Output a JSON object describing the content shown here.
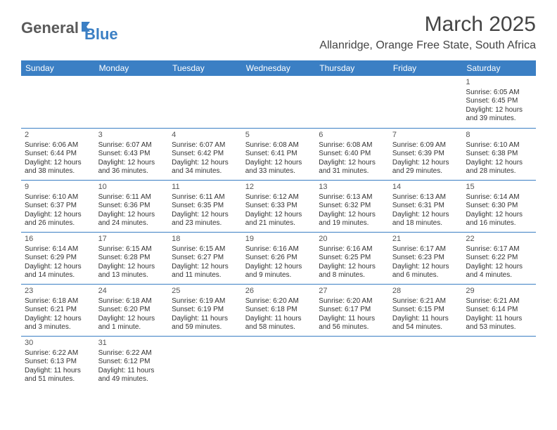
{
  "logo": {
    "text_general": "General",
    "text_blue": "Blue"
  },
  "title": "March 2025",
  "location": "Allanridge, Orange Free State, South Africa",
  "colors": {
    "header_bg": "#3b7fc4",
    "header_text": "#ffffff",
    "body_text": "#333333",
    "title_text": "#444444",
    "border": "#3b7fc4",
    "logo_gray": "#5a5a5a",
    "logo_blue": "#3b7fc4",
    "background": "#ffffff"
  },
  "typography": {
    "title_fontsize": 30,
    "location_fontsize": 16,
    "weekday_fontsize": 12,
    "day_number_fontsize": 11,
    "body_fontsize": 10,
    "logo_fontsize": 22
  },
  "weekdays": [
    "Sunday",
    "Monday",
    "Tuesday",
    "Wednesday",
    "Thursday",
    "Friday",
    "Saturday"
  ],
  "layout": {
    "columns": 7,
    "rows": 6,
    "first_day_column": 6
  },
  "days": [
    {
      "n": "1",
      "sunrise": "Sunrise: 6:05 AM",
      "sunset": "Sunset: 6:45 PM",
      "daylight1": "Daylight: 12 hours",
      "daylight2": "and 39 minutes."
    },
    {
      "n": "2",
      "sunrise": "Sunrise: 6:06 AM",
      "sunset": "Sunset: 6:44 PM",
      "daylight1": "Daylight: 12 hours",
      "daylight2": "and 38 minutes."
    },
    {
      "n": "3",
      "sunrise": "Sunrise: 6:07 AM",
      "sunset": "Sunset: 6:43 PM",
      "daylight1": "Daylight: 12 hours",
      "daylight2": "and 36 minutes."
    },
    {
      "n": "4",
      "sunrise": "Sunrise: 6:07 AM",
      "sunset": "Sunset: 6:42 PM",
      "daylight1": "Daylight: 12 hours",
      "daylight2": "and 34 minutes."
    },
    {
      "n": "5",
      "sunrise": "Sunrise: 6:08 AM",
      "sunset": "Sunset: 6:41 PM",
      "daylight1": "Daylight: 12 hours",
      "daylight2": "and 33 minutes."
    },
    {
      "n": "6",
      "sunrise": "Sunrise: 6:08 AM",
      "sunset": "Sunset: 6:40 PM",
      "daylight1": "Daylight: 12 hours",
      "daylight2": "and 31 minutes."
    },
    {
      "n": "7",
      "sunrise": "Sunrise: 6:09 AM",
      "sunset": "Sunset: 6:39 PM",
      "daylight1": "Daylight: 12 hours",
      "daylight2": "and 29 minutes."
    },
    {
      "n": "8",
      "sunrise": "Sunrise: 6:10 AM",
      "sunset": "Sunset: 6:38 PM",
      "daylight1": "Daylight: 12 hours",
      "daylight2": "and 28 minutes."
    },
    {
      "n": "9",
      "sunrise": "Sunrise: 6:10 AM",
      "sunset": "Sunset: 6:37 PM",
      "daylight1": "Daylight: 12 hours",
      "daylight2": "and 26 minutes."
    },
    {
      "n": "10",
      "sunrise": "Sunrise: 6:11 AM",
      "sunset": "Sunset: 6:36 PM",
      "daylight1": "Daylight: 12 hours",
      "daylight2": "and 24 minutes."
    },
    {
      "n": "11",
      "sunrise": "Sunrise: 6:11 AM",
      "sunset": "Sunset: 6:35 PM",
      "daylight1": "Daylight: 12 hours",
      "daylight2": "and 23 minutes."
    },
    {
      "n": "12",
      "sunrise": "Sunrise: 6:12 AM",
      "sunset": "Sunset: 6:33 PM",
      "daylight1": "Daylight: 12 hours",
      "daylight2": "and 21 minutes."
    },
    {
      "n": "13",
      "sunrise": "Sunrise: 6:13 AM",
      "sunset": "Sunset: 6:32 PM",
      "daylight1": "Daylight: 12 hours",
      "daylight2": "and 19 minutes."
    },
    {
      "n": "14",
      "sunrise": "Sunrise: 6:13 AM",
      "sunset": "Sunset: 6:31 PM",
      "daylight1": "Daylight: 12 hours",
      "daylight2": "and 18 minutes."
    },
    {
      "n": "15",
      "sunrise": "Sunrise: 6:14 AM",
      "sunset": "Sunset: 6:30 PM",
      "daylight1": "Daylight: 12 hours",
      "daylight2": "and 16 minutes."
    },
    {
      "n": "16",
      "sunrise": "Sunrise: 6:14 AM",
      "sunset": "Sunset: 6:29 PM",
      "daylight1": "Daylight: 12 hours",
      "daylight2": "and 14 minutes."
    },
    {
      "n": "17",
      "sunrise": "Sunrise: 6:15 AM",
      "sunset": "Sunset: 6:28 PM",
      "daylight1": "Daylight: 12 hours",
      "daylight2": "and 13 minutes."
    },
    {
      "n": "18",
      "sunrise": "Sunrise: 6:15 AM",
      "sunset": "Sunset: 6:27 PM",
      "daylight1": "Daylight: 12 hours",
      "daylight2": "and 11 minutes."
    },
    {
      "n": "19",
      "sunrise": "Sunrise: 6:16 AM",
      "sunset": "Sunset: 6:26 PM",
      "daylight1": "Daylight: 12 hours",
      "daylight2": "and 9 minutes."
    },
    {
      "n": "20",
      "sunrise": "Sunrise: 6:16 AM",
      "sunset": "Sunset: 6:25 PM",
      "daylight1": "Daylight: 12 hours",
      "daylight2": "and 8 minutes."
    },
    {
      "n": "21",
      "sunrise": "Sunrise: 6:17 AM",
      "sunset": "Sunset: 6:23 PM",
      "daylight1": "Daylight: 12 hours",
      "daylight2": "and 6 minutes."
    },
    {
      "n": "22",
      "sunrise": "Sunrise: 6:17 AM",
      "sunset": "Sunset: 6:22 PM",
      "daylight1": "Daylight: 12 hours",
      "daylight2": "and 4 minutes."
    },
    {
      "n": "23",
      "sunrise": "Sunrise: 6:18 AM",
      "sunset": "Sunset: 6:21 PM",
      "daylight1": "Daylight: 12 hours",
      "daylight2": "and 3 minutes."
    },
    {
      "n": "24",
      "sunrise": "Sunrise: 6:18 AM",
      "sunset": "Sunset: 6:20 PM",
      "daylight1": "Daylight: 12 hours",
      "daylight2": "and 1 minute."
    },
    {
      "n": "25",
      "sunrise": "Sunrise: 6:19 AM",
      "sunset": "Sunset: 6:19 PM",
      "daylight1": "Daylight: 11 hours",
      "daylight2": "and 59 minutes."
    },
    {
      "n": "26",
      "sunrise": "Sunrise: 6:20 AM",
      "sunset": "Sunset: 6:18 PM",
      "daylight1": "Daylight: 11 hours",
      "daylight2": "and 58 minutes."
    },
    {
      "n": "27",
      "sunrise": "Sunrise: 6:20 AM",
      "sunset": "Sunset: 6:17 PM",
      "daylight1": "Daylight: 11 hours",
      "daylight2": "and 56 minutes."
    },
    {
      "n": "28",
      "sunrise": "Sunrise: 6:21 AM",
      "sunset": "Sunset: 6:15 PM",
      "daylight1": "Daylight: 11 hours",
      "daylight2": "and 54 minutes."
    },
    {
      "n": "29",
      "sunrise": "Sunrise: 6:21 AM",
      "sunset": "Sunset: 6:14 PM",
      "daylight1": "Daylight: 11 hours",
      "daylight2": "and 53 minutes."
    },
    {
      "n": "30",
      "sunrise": "Sunrise: 6:22 AM",
      "sunset": "Sunset: 6:13 PM",
      "daylight1": "Daylight: 11 hours",
      "daylight2": "and 51 minutes."
    },
    {
      "n": "31",
      "sunrise": "Sunrise: 6:22 AM",
      "sunset": "Sunset: 6:12 PM",
      "daylight1": "Daylight: 11 hours",
      "daylight2": "and 49 minutes."
    }
  ]
}
